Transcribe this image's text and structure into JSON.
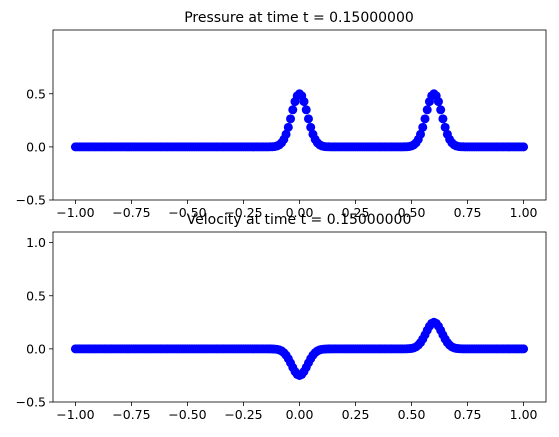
{
  "figure": {
    "background": "#ffffff"
  },
  "chart_data": [
    {
      "type": "scatter",
      "title": "Pressure at time t =     0.15000000",
      "xlabel": "",
      "ylabel": "",
      "xlim": [
        -1.1,
        1.1
      ],
      "ylim": [
        -0.5,
        1.1
      ],
      "xticks": [
        -1.0,
        -0.75,
        -0.5,
        -0.25,
        0.0,
        0.25,
        0.5,
        0.75,
        1.0
      ],
      "xtick_labels": [
        "−1.00",
        "−0.75",
        "−0.50",
        "−0.25",
        "0.00",
        "0.25",
        "0.50",
        "0.75",
        "1.00"
      ],
      "yticks": [
        -0.5,
        0.0,
        0.5
      ],
      "ytick_labels": [
        "−0.5",
        "0.0",
        "0.5"
      ],
      "grid": false,
      "series": [
        {
          "marker": "circle",
          "color": "#0000ff",
          "x_range": [
            -1.0,
            1.0
          ],
          "n_points": 201,
          "bumps": [
            {
              "center": 0.0,
              "amplitude": 0.5,
              "width": 0.05
            },
            {
              "center": 0.6,
              "amplitude": 0.5,
              "width": 0.05
            }
          ]
        }
      ]
    },
    {
      "type": "scatter",
      "title": "Velocity at time t =     0.15000000",
      "xlabel": "",
      "ylabel": "",
      "xlim": [
        -1.1,
        1.1
      ],
      "ylim": [
        -0.5,
        1.1
      ],
      "xticks": [
        -1.0,
        -0.75,
        -0.5,
        -0.25,
        0.0,
        0.25,
        0.5,
        0.75,
        1.0
      ],
      "xtick_labels": [
        "−1.00",
        "−0.75",
        "−0.50",
        "−0.25",
        "0.00",
        "0.25",
        "0.50",
        "0.75",
        "1.00"
      ],
      "yticks": [
        -0.5,
        0.0,
        0.5,
        1.0
      ],
      "ytick_labels": [
        "−0.5",
        "0.0",
        "0.5",
        "1.0"
      ],
      "grid": false,
      "series": [
        {
          "marker": "circle",
          "color": "#0000ff",
          "x_range": [
            -1.0,
            1.0
          ],
          "n_points": 201,
          "bumps": [
            {
              "center": 0.0,
              "amplitude": -0.25,
              "width": 0.05
            },
            {
              "center": 0.6,
              "amplitude": 0.25,
              "width": 0.05
            }
          ]
        }
      ]
    }
  ]
}
